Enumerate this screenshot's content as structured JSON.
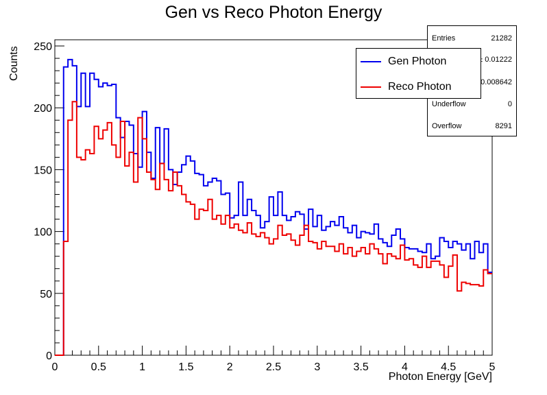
{
  "chart_data": {
    "type": "histogram",
    "title": "Gen vs Reco Photon Energy",
    "xlabel": "Photon Energy [GeV]",
    "ylabel": "Counts",
    "xlim": [
      0,
      5
    ],
    "ylim": [
      0,
      255
    ],
    "bin_width": 0.05,
    "x_ticks": [
      "0",
      "0.5",
      "1",
      "1.5",
      "2",
      "2.5",
      "3",
      "3.5",
      "4",
      "4.5",
      "5"
    ],
    "y_ticks": [
      "0",
      "50",
      "100",
      "150",
      "200",
      "250"
    ],
    "legend_position": "top-right",
    "series": [
      {
        "name": "Gen Photon",
        "color": "#0000ee",
        "values": [
          0,
          0,
          233,
          239,
          234,
          201,
          228,
          201,
          228,
          223,
          217,
          220,
          218,
          219,
          192,
          176,
          189,
          186,
          163,
          152,
          197,
          164,
          143,
          184,
          155,
          183,
          150,
          138,
          148,
          154,
          161,
          157,
          147,
          146,
          137,
          140,
          143,
          141,
          130,
          131,
          111,
          113,
          140,
          113,
          126,
          117,
          113,
          103,
          108,
          128,
          113,
          132,
          113,
          109,
          112,
          116,
          114,
          102,
          118,
          104,
          113,
          101,
          104,
          108,
          105,
          112,
          103,
          99,
          105,
          95,
          100,
          99,
          98,
          106,
          94,
          91,
          88,
          97,
          102,
          94,
          87,
          86,
          86,
          84,
          83,
          90,
          78,
          80,
          95,
          92,
          87,
          92,
          90,
          85,
          90,
          78,
          92,
          83,
          90,
          67
        ]
      },
      {
        "name": "Reco Photon",
        "color": "#ee0000",
        "values": [
          0,
          0,
          92,
          190,
          205,
          160,
          158,
          166,
          163,
          185,
          175,
          182,
          188,
          170,
          160,
          189,
          153,
          164,
          140,
          192,
          175,
          148,
          142,
          134,
          155,
          142,
          133,
          148,
          137,
          130,
          124,
          122,
          110,
          118,
          117,
          126,
          110,
          113,
          106,
          113,
          103,
          106,
          101,
          99,
          107,
          98,
          96,
          99,
          95,
          90,
          94,
          105,
          97,
          98,
          93,
          89,
          97,
          105,
          92,
          91,
          86,
          92,
          88,
          88,
          84,
          90,
          82,
          87,
          80,
          84,
          87,
          82,
          90,
          86,
          82,
          74,
          82,
          80,
          78,
          89,
          77,
          78,
          73,
          71,
          80,
          71,
          76,
          76,
          73,
          63,
          72,
          81,
          52,
          59,
          58,
          57,
          57,
          56,
          69,
          66
        ]
      }
    ]
  },
  "stats_box": {
    "entries_label": "Entries",
    "entries_value": "21282",
    "mean_partial": ".08 ± 0.01222",
    "std_partial": "3 ± 0.008642",
    "underflow_label": "Underflow",
    "underflow_value": "0",
    "overflow_label": "Overflow",
    "overflow_value": "8291"
  }
}
